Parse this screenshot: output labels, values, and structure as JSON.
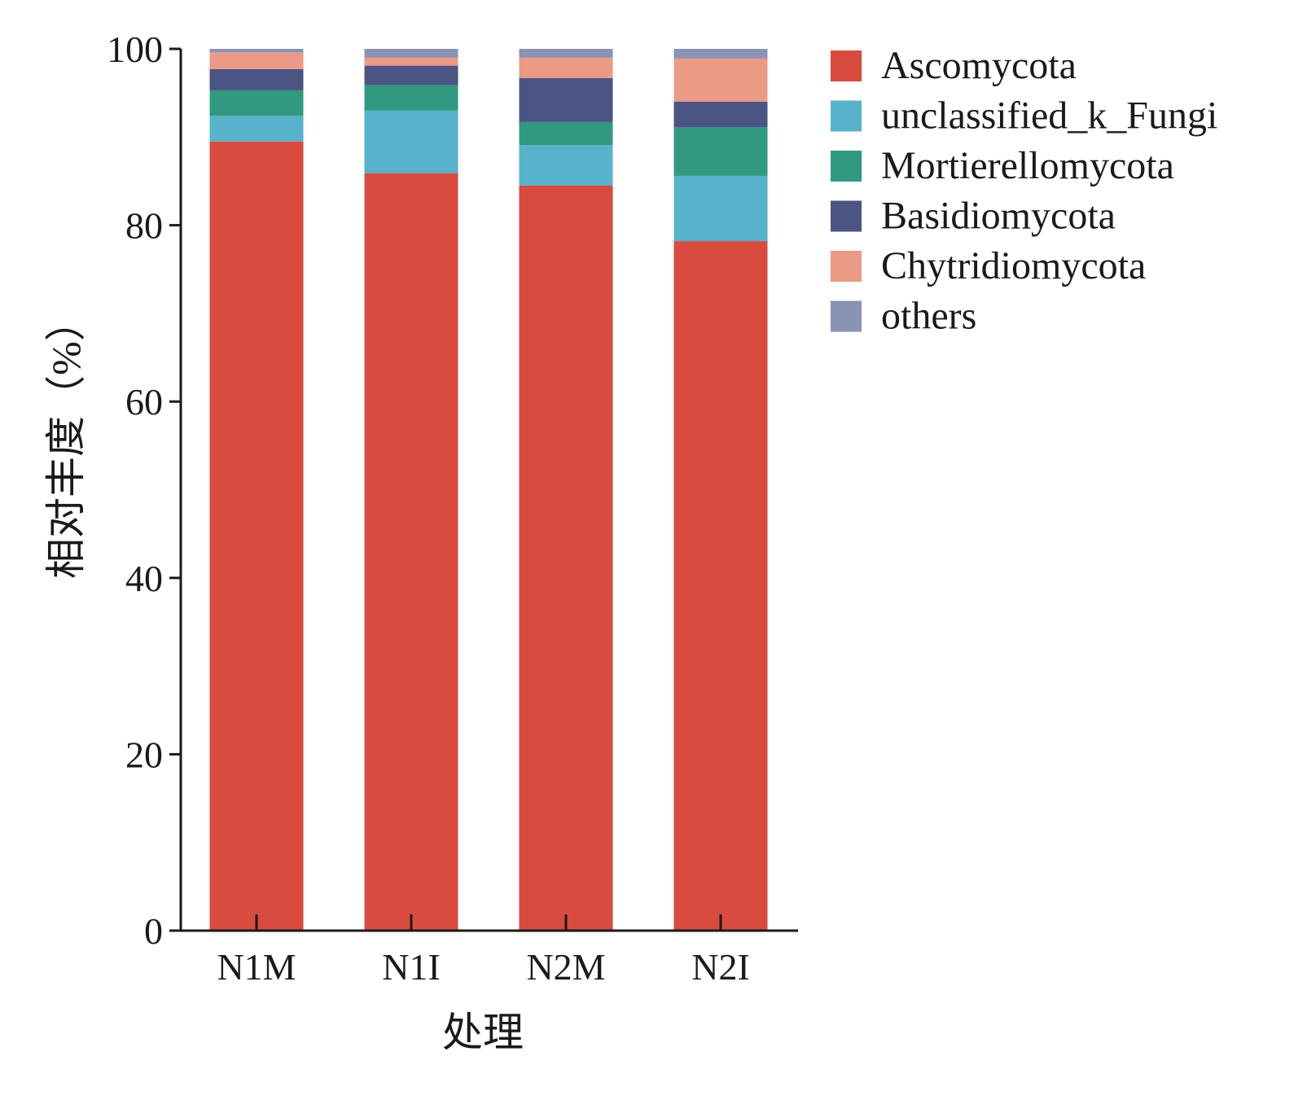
{
  "chart_data": {
    "type": "bar",
    "stacked": true,
    "xlabel": "处理",
    "ylabel": "相对丰度（%）",
    "ylim": [
      0,
      100
    ],
    "yticks": [
      "0",
      "20",
      "40",
      "60",
      "80",
      "100"
    ],
    "categories": [
      "N1M",
      "N1I",
      "N2M",
      "N2I"
    ],
    "grid": false,
    "legend_position": "right",
    "series": [
      {
        "name": "Ascomycota",
        "color": "#d94b3f",
        "values": [
          89.5,
          85.9,
          84.5,
          78.2
        ]
      },
      {
        "name": "unclassified_k_Fungi",
        "color": "#56b3cb",
        "values": [
          2.9,
          7.1,
          4.6,
          7.4
        ]
      },
      {
        "name": "Mortierellomycota",
        "color": "#30997f",
        "values": [
          2.9,
          2.9,
          2.6,
          5.5
        ]
      },
      {
        "name": "Basidiomycota",
        "color": "#4a5583",
        "values": [
          2.4,
          2.2,
          5.0,
          2.9
        ]
      },
      {
        "name": "Chytridiomycota",
        "color": "#eb9a86",
        "values": [
          1.9,
          0.9,
          2.3,
          4.9
        ]
      },
      {
        "name": "others",
        "color": "#8a93b5",
        "values": [
          0.4,
          1.0,
          1.0,
          1.1
        ]
      }
    ]
  }
}
